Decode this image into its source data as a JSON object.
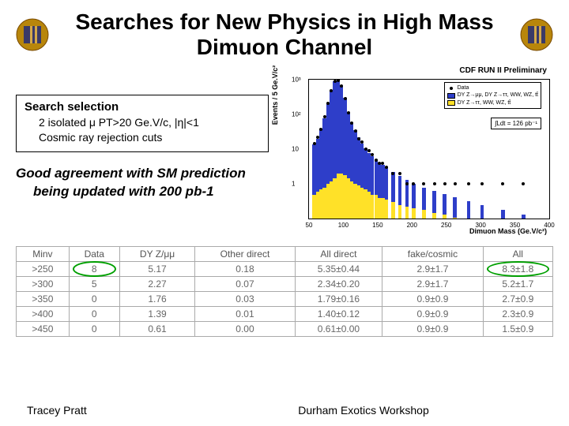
{
  "title": "Searches for New Physics in High Mass Dimuon Channel",
  "selection": {
    "heading": "Search selection",
    "line1": "2 isolated μ PT>20 Ge.V/c, |η|<1",
    "line2": "Cosmic ray rejection cuts"
  },
  "agreement": {
    "line1": "Good agreement with SM prediction",
    "line2": "being updated with 200 pb-1"
  },
  "chart": {
    "type": "histogram",
    "title": "CDF RUN II Preliminary",
    "xlabel": "Dimuon Mass (Ge.V/c²)",
    "ylabel": "Events / 5 Ge.V/c²",
    "xlim": [
      50,
      400
    ],
    "ylim_log": [
      -1,
      3
    ],
    "xticks": [
      50,
      100,
      150,
      200,
      250,
      300,
      350,
      400
    ],
    "yticks": [
      1,
      10,
      100,
      1000
    ],
    "ytick_labels": [
      "1",
      "10",
      "10²",
      "10³"
    ],
    "legend": [
      {
        "swatch": "marker",
        "label": "Data"
      },
      {
        "swatch": "#2e3ec9",
        "label": "DY Z→μμ, DY Z→ττ, WW, WZ, tt̄"
      },
      {
        "swatch": "#ffe128",
        "label": "DY Z→ττ, WW, WZ, tt̄"
      }
    ],
    "lumi": "∫Ldt = 126 pb⁻¹",
    "blue_color": "#2e3ec9",
    "yellow_color": "#ffe128",
    "background": "#ffffff",
    "bins": [
      {
        "x": 55,
        "blue": 14,
        "yellow": 0.5,
        "data": 15
      },
      {
        "x": 60,
        "blue": 20,
        "yellow": 0.6,
        "data": 22
      },
      {
        "x": 65,
        "blue": 40,
        "yellow": 0.7,
        "data": 38
      },
      {
        "x": 70,
        "blue": 80,
        "yellow": 0.8,
        "data": 85
      },
      {
        "x": 75,
        "blue": 200,
        "yellow": 1,
        "data": 210
      },
      {
        "x": 80,
        "blue": 500,
        "yellow": 1.2,
        "data": 480
      },
      {
        "x": 85,
        "blue": 900,
        "yellow": 1.5,
        "data": 920
      },
      {
        "x": 90,
        "blue": 1000,
        "yellow": 2,
        "data": 950
      },
      {
        "x": 95,
        "blue": 700,
        "yellow": 2,
        "data": 680
      },
      {
        "x": 100,
        "blue": 300,
        "yellow": 1.8,
        "data": 290
      },
      {
        "x": 105,
        "blue": 120,
        "yellow": 1.5,
        "data": 115
      },
      {
        "x": 110,
        "blue": 60,
        "yellow": 1.2,
        "data": 58
      },
      {
        "x": 115,
        "blue": 35,
        "yellow": 1,
        "data": 34
      },
      {
        "x": 120,
        "blue": 22,
        "yellow": 0.9,
        "data": 20
      },
      {
        "x": 125,
        "blue": 15,
        "yellow": 0.8,
        "data": 16
      },
      {
        "x": 130,
        "blue": 11,
        "yellow": 0.7,
        "data": 10
      },
      {
        "x": 135,
        "blue": 8,
        "yellow": 0.6,
        "data": 9
      },
      {
        "x": 140,
        "blue": 6.5,
        "yellow": 0.5,
        "data": 7
      },
      {
        "x": 145,
        "blue": 5.2,
        "yellow": 0.5,
        "data": 5
      },
      {
        "x": 150,
        "blue": 4.3,
        "yellow": 0.4,
        "data": 4
      },
      {
        "x": 155,
        "blue": 3.6,
        "yellow": 0.4,
        "data": 4
      },
      {
        "x": 160,
        "blue": 3,
        "yellow": 0.35,
        "data": 3
      },
      {
        "x": 170,
        "blue": 2.2,
        "yellow": 0.3,
        "data": 2
      },
      {
        "x": 180,
        "blue": 1.7,
        "yellow": 0.25,
        "data": 2
      },
      {
        "x": 190,
        "blue": 1.3,
        "yellow": 0.22,
        "data": 1
      },
      {
        "x": 200,
        "blue": 1,
        "yellow": 0.2,
        "data": 1
      },
      {
        "x": 215,
        "blue": 0.8,
        "yellow": 0.18,
        "data": 1
      },
      {
        "x": 230,
        "blue": 0.65,
        "yellow": 0.15,
        "data": 1
      },
      {
        "x": 245,
        "blue": 0.52,
        "yellow": 0.13,
        "data": 1
      },
      {
        "x": 260,
        "blue": 0.42,
        "yellow": 0.11,
        "data": 1
      },
      {
        "x": 280,
        "blue": 0.32,
        "yellow": 0.1,
        "data": 1
      },
      {
        "x": 300,
        "blue": 0.25,
        "yellow": 0.09,
        "data": 1
      },
      {
        "x": 330,
        "blue": 0.18,
        "yellow": 0.07,
        "data": 1
      },
      {
        "x": 360,
        "blue": 0.13,
        "yellow": 0.06,
        "data": 1
      }
    ]
  },
  "table": {
    "columns": [
      "Minv",
      "Data",
      "DY Z/μμ",
      "Other direct",
      "All direct",
      "fake/cosmic",
      "All"
    ],
    "rows": [
      [
        ">250",
        "8",
        "5.17",
        "0.18",
        "5.35±0.44",
        "2.9±1.7",
        "8.3±1.8"
      ],
      [
        ">300",
        "5",
        "2.27",
        "0.07",
        "2.34±0.20",
        "2.9±1.7",
        "5.2±1.7"
      ],
      [
        ">350",
        "0",
        "1.76",
        "0.03",
        "1.79±0.16",
        "0.9±0.9",
        "2.7±0.9"
      ],
      [
        ">400",
        "0",
        "1.39",
        "0.01",
        "1.40±0.12",
        "0.9±0.9",
        "2.3±0.9"
      ],
      [
        ">450",
        "0",
        "0.61",
        "0.00",
        "0.61±0.00",
        "0.9±0.9",
        "1.5±0.9"
      ]
    ],
    "circled": [
      [
        0,
        1
      ],
      [
        0,
        6
      ]
    ]
  },
  "footer": {
    "author": "Tracey Pratt",
    "venue": "Durham Exotics Workshop"
  },
  "colors": {
    "circle": "#00a000",
    "text": "#000000",
    "table_border": "#aaaaaa",
    "table_text": "#666666"
  }
}
